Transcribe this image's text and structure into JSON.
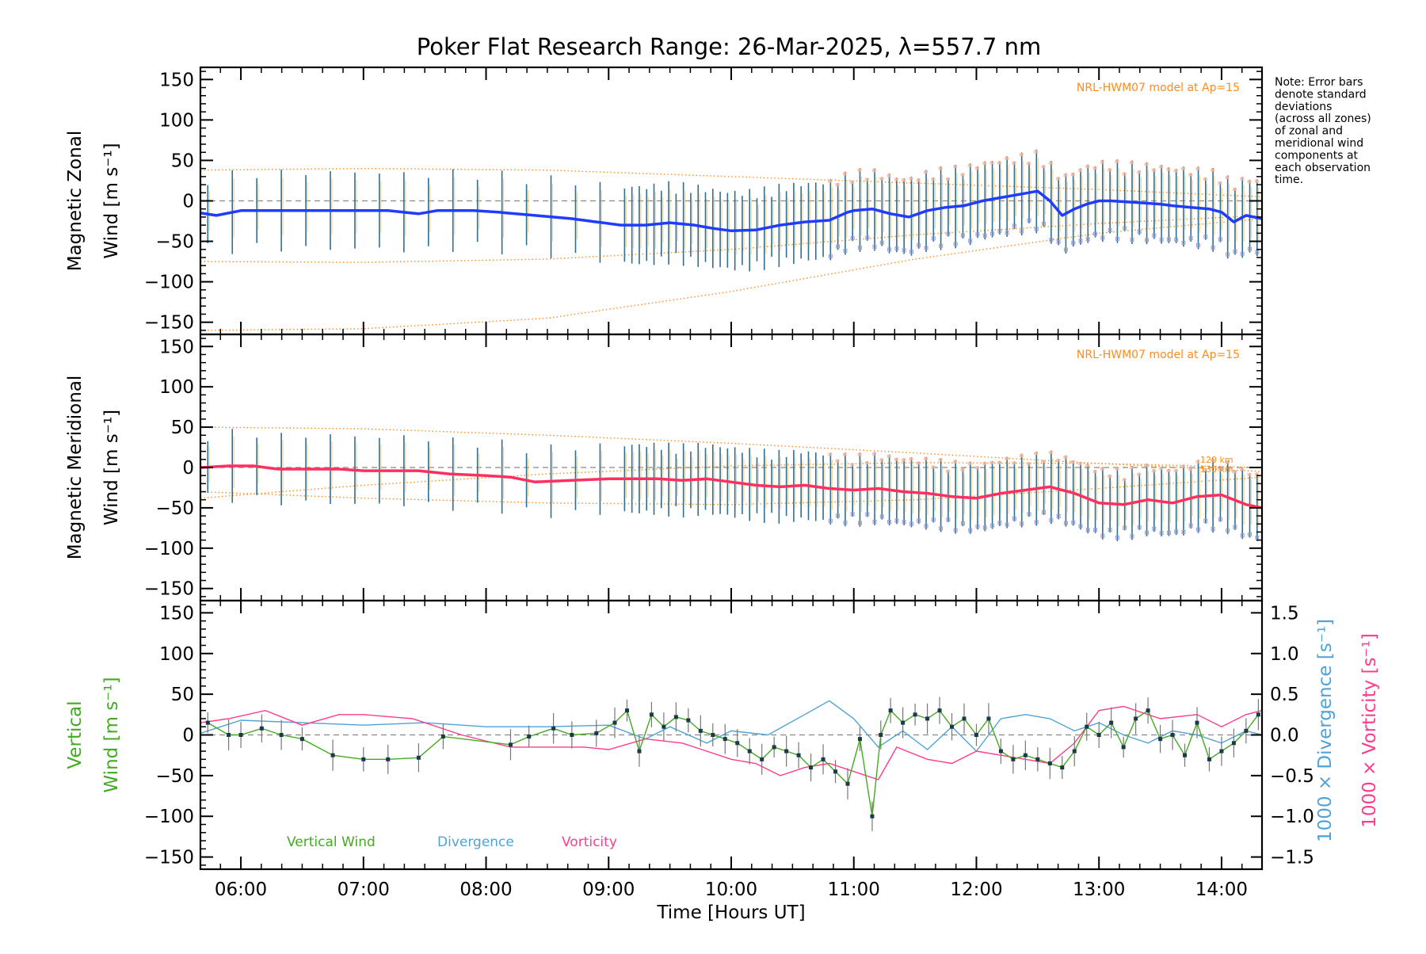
{
  "title": "Poker Flat Research Range: 26-Mar-2025, λ=557.7 nm",
  "note": [
    "Note: Error bars",
    "denote standard",
    "deviations",
    "(across all zones)",
    "of zonal and",
    "meridional wind",
    "components at",
    "each observation",
    "time."
  ],
  "model_label": "NRL-HWM07 model at Ap=15",
  "model_height_labels": [
    "120 km",
    "130 km"
  ],
  "colors": {
    "zonal": "#1f3cff",
    "meridional": "#ff3060",
    "vertical": "#44aa22",
    "divergence": "#4fa3d6",
    "vorticity": "#ff3c8c",
    "model": "#ff8c1a",
    "errorbar": "#2f6f8f",
    "zone_points": "#9b9bd8",
    "zero_line": "#888888"
  },
  "chart_data": [
    {
      "type": "line",
      "panel": "zonal",
      "ylabel": [
        "Magnetic Zonal",
        "Wind [m s⁻¹]"
      ],
      "ylim": [
        -165,
        165
      ],
      "yticks": [
        150,
        100,
        50,
        0,
        -50,
        -100,
        -150
      ],
      "xlim": [
        5.67,
        14.33
      ],
      "annotation": "NRL-HWM07 model at Ap=15",
      "series": [
        {
          "role": "mean wind",
          "x": [
            5.67,
            5.8,
            6.0,
            6.2,
            6.5,
            6.8,
            7.0,
            7.2,
            7.45,
            7.6,
            7.9,
            8.1,
            8.4,
            8.7,
            8.9,
            9.1,
            9.3,
            9.5,
            9.7,
            9.85,
            10.0,
            10.2,
            10.4,
            10.6,
            10.8,
            10.95,
            11.0,
            11.15,
            11.3,
            11.45,
            11.6,
            11.75,
            11.9,
            12.05,
            12.2,
            12.35,
            12.5,
            12.6,
            12.7,
            12.8,
            12.9,
            13.0,
            13.1,
            13.3,
            13.5,
            13.6,
            13.75,
            13.9,
            14.0,
            14.1,
            14.2,
            14.33
          ],
          "y": [
            -15,
            -18,
            -12,
            -12,
            -12,
            -12,
            -12,
            -12,
            -16,
            -12,
            -12,
            -14,
            -18,
            -22,
            -26,
            -30,
            -30,
            -27,
            -30,
            -34,
            -37,
            -36,
            -30,
            -26,
            -24,
            -14,
            -12,
            -10,
            -16,
            -20,
            -12,
            -8,
            -6,
            0,
            4,
            8,
            12,
            0,
            -18,
            -10,
            -4,
            0,
            0,
            -2,
            -4,
            -6,
            -8,
            -10,
            -14,
            -26,
            -18,
            -22
          ]
        }
      ],
      "model_curves": [
        {
          "x": [
            5.67,
            7.0,
            8.5,
            10.0,
            11.5,
            13.0,
            14.33
          ],
          "y": [
            38,
            40,
            38,
            30,
            22,
            14,
            5
          ]
        },
        {
          "x": [
            5.67,
            7.0,
            8.5,
            10.0,
            11.5,
            13.0,
            14.33
          ],
          "y": [
            -75,
            -76,
            -72,
            -60,
            -42,
            -28,
            -18
          ]
        },
        {
          "x": [
            5.67,
            7.0,
            8.5,
            10.0,
            11.5,
            13.0,
            14.33
          ],
          "y": [
            -160,
            -158,
            -145,
            -112,
            -72,
            -40,
            -22
          ]
        }
      ],
      "errorbar_sd": 45
    },
    {
      "type": "line",
      "panel": "meridional",
      "ylabel": [
        "Magnetic Meridional",
        "Wind [m s⁻¹]"
      ],
      "ylim": [
        -165,
        165
      ],
      "yticks": [
        150,
        100,
        50,
        0,
        -50,
        -100,
        -150
      ],
      "xlim": [
        5.67,
        14.33
      ],
      "annotation": "NRL-HWM07 model at Ap=15",
      "series": [
        {
          "role": "mean wind",
          "x": [
            5.67,
            5.9,
            6.1,
            6.3,
            6.6,
            6.8,
            7.0,
            7.2,
            7.45,
            7.7,
            8.0,
            8.2,
            8.4,
            8.7,
            9.0,
            9.2,
            9.4,
            9.6,
            9.8,
            10.0,
            10.2,
            10.4,
            10.6,
            10.8,
            11.0,
            11.2,
            11.4,
            11.6,
            11.8,
            12.0,
            12.2,
            12.4,
            12.6,
            12.8,
            13.0,
            13.2,
            13.4,
            13.6,
            13.8,
            14.0,
            14.2,
            14.33
          ],
          "y": [
            0,
            2,
            2,
            -2,
            -2,
            -2,
            -4,
            -4,
            -4,
            -8,
            -10,
            -12,
            -18,
            -16,
            -14,
            -14,
            -14,
            -16,
            -14,
            -18,
            -22,
            -24,
            -22,
            -26,
            -28,
            -26,
            -30,
            -32,
            -36,
            -38,
            -32,
            -28,
            -24,
            -32,
            -44,
            -46,
            -40,
            -44,
            -36,
            -34,
            -46,
            -50
          ]
        }
      ],
      "model_curves": [
        {
          "x": [
            5.67,
            7.0,
            8.5,
            10.0,
            11.5,
            13.0,
            14.33
          ],
          "y": [
            50,
            48,
            40,
            30,
            18,
            5,
            -5
          ]
        },
        {
          "x": [
            5.67,
            7.0,
            8.5,
            10.0,
            11.5,
            13.0,
            14.33
          ],
          "y": [
            -38,
            -22,
            -8,
            2,
            6,
            5,
            0
          ]
        },
        {
          "x": [
            5.67,
            7.0,
            8.5,
            10.0,
            11.5,
            13.0,
            14.33
          ],
          "y": [
            -30,
            -38,
            -44,
            -46,
            -40,
            -26,
            -12
          ]
        }
      ],
      "errorbar_sd": 40
    },
    {
      "type": "line",
      "panel": "vertical",
      "ylabel": [
        "Vertical",
        "Wind [m s⁻¹]"
      ],
      "ylim": [
        -165,
        165
      ],
      "yticks": [
        150,
        100,
        50,
        0,
        -50,
        -100,
        -150
      ],
      "right_axis": {
        "ylim": [
          -1.65,
          1.65
        ],
        "ticks": [
          "1.5",
          "1.0",
          "0.5",
          "0.0",
          "−0.5",
          "−1.0",
          "−1.5"
        ],
        "tick_values": [
          1.5,
          1.0,
          0.5,
          0.0,
          -0.5,
          -1.0,
          -1.5
        ],
        "label1": "1000 × Divergence [s⁻¹]",
        "label2": "1000 × Vorticity [s⁻¹]"
      },
      "xlim": [
        5.67,
        14.33
      ],
      "xlabel": "Time [Hours UT]",
      "xticks": [
        6,
        7,
        8,
        9,
        10,
        11,
        12,
        13,
        14
      ],
      "xticklabels": [
        "06:00",
        "07:00",
        "08:00",
        "09:00",
        "10:00",
        "11:00",
        "12:00",
        "13:00",
        "14:00"
      ],
      "legend": [
        "Vertical Wind",
        "Divergence",
        "Vorticity"
      ],
      "series": [
        {
          "name": "Vertical Wind",
          "x": [
            5.73,
            5.9,
            6.0,
            6.17,
            6.33,
            6.5,
            6.75,
            7.0,
            7.2,
            7.45,
            7.65,
            8.2,
            8.35,
            8.55,
            8.7,
            8.9,
            9.05,
            9.15,
            9.25,
            9.35,
            9.45,
            9.55,
            9.65,
            9.75,
            9.85,
            9.95,
            10.05,
            10.15,
            10.25,
            10.35,
            10.45,
            10.55,
            10.65,
            10.75,
            10.85,
            10.95,
            11.05,
            11.15,
            11.22,
            11.3,
            11.4,
            11.5,
            11.6,
            11.7,
            11.8,
            11.9,
            12.0,
            12.1,
            12.2,
            12.3,
            12.4,
            12.5,
            12.6,
            12.7,
            12.8,
            12.9,
            13.0,
            13.1,
            13.2,
            13.3,
            13.4,
            13.5,
            13.6,
            13.7,
            13.8,
            13.9,
            14.0,
            14.1,
            14.2,
            14.3
          ],
          "y": [
            15,
            0,
            0,
            8,
            0,
            -5,
            -25,
            -30,
            -30,
            -28,
            -2,
            -12,
            -2,
            8,
            0,
            2,
            15,
            30,
            -20,
            25,
            10,
            22,
            18,
            5,
            0,
            -5,
            -10,
            -20,
            -30,
            -15,
            -20,
            -25,
            -40,
            -30,
            -45,
            -60,
            -5,
            -100,
            0,
            30,
            15,
            25,
            20,
            30,
            10,
            20,
            0,
            20,
            -20,
            -30,
            -25,
            -30,
            -35,
            -40,
            -20,
            10,
            0,
            15,
            -15,
            20,
            30,
            -5,
            0,
            -25,
            15,
            -30,
            -20,
            -10,
            5,
            25
          ]
        },
        {
          "name": "Divergence",
          "x": [
            5.67,
            6.0,
            6.5,
            7.0,
            7.5,
            8.0,
            8.5,
            9.0,
            9.3,
            9.5,
            9.8,
            10.0,
            10.3,
            10.6,
            10.8,
            11.0,
            11.2,
            11.4,
            11.6,
            11.8,
            12.0,
            12.2,
            12.4,
            12.6,
            12.8,
            13.0,
            13.2,
            13.4,
            13.6,
            13.8,
            14.0,
            14.2,
            14.33
          ],
          "y": [
            0.02,
            0.18,
            0.15,
            0.12,
            0.15,
            0.1,
            0.1,
            0.12,
            -0.05,
            0.1,
            -0.1,
            0.05,
            0.0,
            0.25,
            0.42,
            0.2,
            -0.15,
            0.05,
            -0.18,
            0.1,
            -0.2,
            0.2,
            0.25,
            0.2,
            0.05,
            0.15,
            0.0,
            -0.1,
            0.05,
            0.0,
            -0.1,
            0.05,
            0.0
          ]
        },
        {
          "name": "Vorticity",
          "x": [
            5.67,
            5.9,
            6.2,
            6.5,
            6.8,
            7.0,
            7.4,
            7.8,
            8.2,
            8.5,
            8.8,
            9.0,
            9.3,
            9.6,
            9.8,
            10.0,
            10.2,
            10.4,
            10.6,
            10.8,
            11.0,
            11.2,
            11.35,
            11.6,
            11.8,
            12.0,
            12.2,
            12.4,
            12.6,
            12.8,
            13.0,
            13.2,
            13.5,
            13.8,
            14.0,
            14.2,
            14.33
          ],
          "y": [
            0.15,
            0.2,
            0.3,
            0.12,
            0.25,
            0.25,
            0.2,
            0.0,
            -0.15,
            -0.15,
            -0.15,
            -0.18,
            -0.05,
            -0.1,
            -0.2,
            -0.3,
            -0.35,
            -0.5,
            -0.4,
            -0.35,
            -0.45,
            -0.55,
            -0.15,
            -0.3,
            -0.35,
            -0.2,
            -0.25,
            -0.3,
            -0.35,
            -0.1,
            0.3,
            0.35,
            0.2,
            0.25,
            0.1,
            0.25,
            0.3
          ]
        }
      ],
      "errorbar_sd": 16
    }
  ]
}
